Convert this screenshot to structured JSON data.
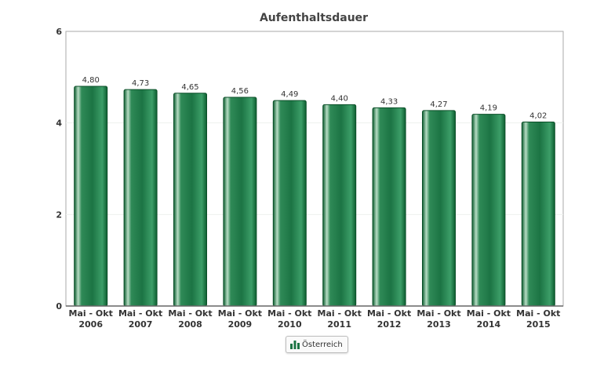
{
  "colors": {
    "bar_dark": "#0d5e30",
    "bar_light": "#3c9e68",
    "bar_highlight": "#e8f5ec",
    "axis": "#666666",
    "plot_border": "#aaaaaa",
    "text": "#333333"
  },
  "legend": {
    "icon": "bar-chart-icon",
    "label": "Österreich"
  },
  "chart_data": {
    "type": "bar",
    "title": "Aufenthaltsdauer",
    "xlabel": "",
    "ylabel": "",
    "ylim": [
      0,
      6
    ],
    "yticks": [
      0,
      2,
      4,
      6
    ],
    "grid": true,
    "legend_position": "bottom-center",
    "categories": [
      [
        "Mai - Okt",
        "2006"
      ],
      [
        "Mai - Okt",
        "2007"
      ],
      [
        "Mai - Okt",
        "2008"
      ],
      [
        "Mai - Okt",
        "2009"
      ],
      [
        "Mai - Okt",
        "2010"
      ],
      [
        "Mai - Okt",
        "2011"
      ],
      [
        "Mai - Okt",
        "2012"
      ],
      [
        "Mai - Okt",
        "2013"
      ],
      [
        "Mai - Okt",
        "2014"
      ],
      [
        "Mai - Okt",
        "2015"
      ]
    ],
    "series": [
      {
        "name": "Österreich",
        "values": [
          4.8,
          4.73,
          4.65,
          4.56,
          4.49,
          4.4,
          4.33,
          4.27,
          4.19,
          4.02
        ],
        "labels": [
          "4,80",
          "4,73",
          "4,65",
          "4,56",
          "4,49",
          "4,40",
          "4,33",
          "4,27",
          "4,19",
          "4,02"
        ]
      }
    ]
  }
}
